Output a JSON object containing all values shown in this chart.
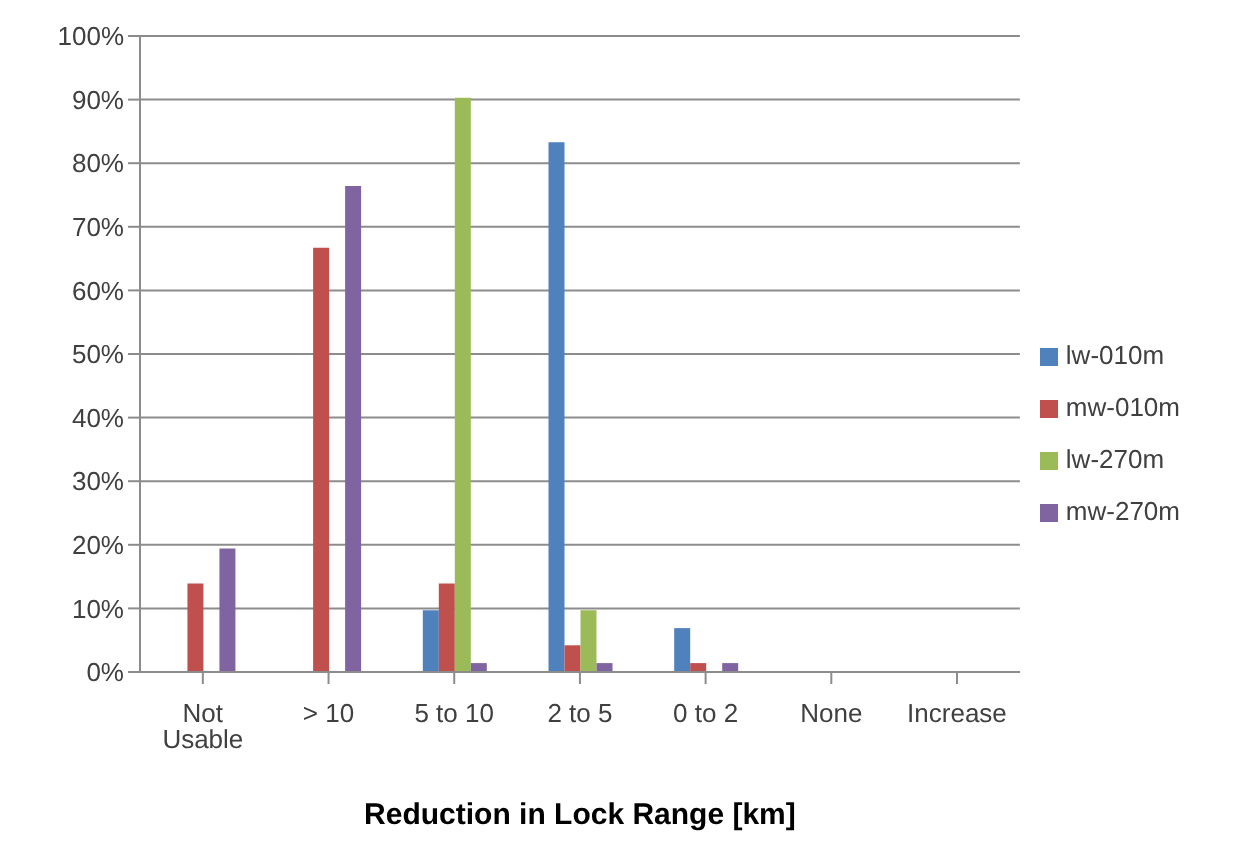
{
  "chart_data": {
    "type": "bar",
    "xlabel": "Reduction in Lock Range  [km]",
    "categories": [
      "Not Usable",
      "> 10",
      "5 to 10",
      "2 to 5",
      "0 to 2",
      "None",
      "Increase"
    ],
    "series": [
      {
        "name": "lw-010m",
        "color": "#4f81bd",
        "values": [
          0,
          0,
          9.7,
          83.3,
          6.9,
          0,
          0
        ]
      },
      {
        "name": "mw-010m",
        "color": "#c0504d",
        "values": [
          13.9,
          66.7,
          13.9,
          4.2,
          1.4,
          0,
          0
        ]
      },
      {
        "name": "lw-270m",
        "color": "#9bbb59",
        "values": [
          0,
          0,
          90.3,
          9.7,
          0,
          0,
          0
        ]
      },
      {
        "name": "mw-270m",
        "color": "#8064a2",
        "values": [
          19.4,
          76.4,
          1.4,
          1.4,
          1.4,
          0,
          0
        ]
      }
    ],
    "ylim": [
      0,
      100
    ],
    "yticks": [
      {
        "value": 0,
        "label": "0%"
      },
      {
        "value": 10,
        "label": "10%"
      },
      {
        "value": 20,
        "label": "20%"
      },
      {
        "value": 30,
        "label": "30%"
      },
      {
        "value": 40,
        "label": "40%"
      },
      {
        "value": 50,
        "label": "50%"
      },
      {
        "value": 60,
        "label": "60%"
      },
      {
        "value": 70,
        "label": "70%"
      },
      {
        "value": 80,
        "label": "80%"
      },
      {
        "value": 90,
        "label": "90%"
      },
      {
        "value": 100,
        "label": "100%"
      }
    ],
    "grid": "y",
    "legend": "right"
  }
}
